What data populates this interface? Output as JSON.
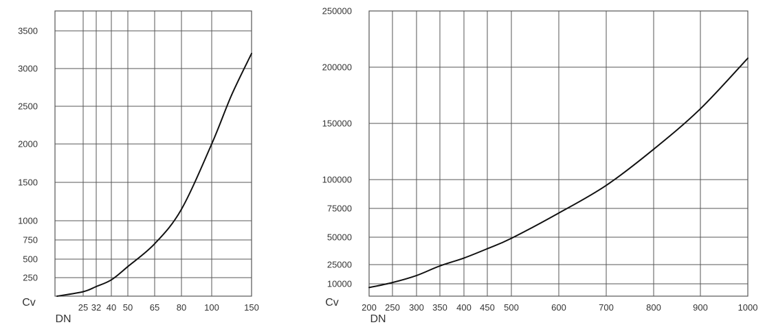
{
  "chart_data": [
    {
      "type": "line",
      "title": "",
      "xlabel": "DN",
      "ylabel": "Cv",
      "grid": true,
      "x_ticks": [
        "25",
        "32",
        "40",
        "50",
        "65",
        "80",
        "100",
        "150"
      ],
      "y_ticks": [
        "250",
        "500",
        "750",
        "1000",
        "1500",
        "2000",
        "2500",
        "3000",
        "3500"
      ],
      "ylim": [
        0,
        3700
      ],
      "series": [
        {
          "x": [
            "15",
            "25",
            "32",
            "40",
            "50",
            "65",
            "80",
            "100",
            "125",
            "150"
          ],
          "values": [
            0,
            60,
            130,
            220,
            400,
            700,
            1150,
            2000,
            2650,
            3200
          ]
        }
      ]
    },
    {
      "type": "line",
      "title": "",
      "xlabel": "DN",
      "ylabel": "Cv",
      "grid": true,
      "x_ticks": [
        "200",
        "250",
        "300",
        "350",
        "400",
        "450",
        "500",
        "600",
        "700",
        "800",
        "900",
        "1000"
      ],
      "y_ticks": [
        "10000",
        "25000",
        "50000",
        "75000",
        "100000",
        "150000",
        "200000",
        "250000"
      ],
      "ylim": [
        0,
        250000
      ],
      "series": [
        {
          "x": [
            "200",
            "250",
            "300",
            "350",
            "400",
            "450",
            "500",
            "600",
            "700",
            "800",
            "900",
            "1000"
          ],
          "values": [
            7000,
            11000,
            16500,
            24000,
            31000,
            39500,
            49000,
            71000,
            95000,
            127000,
            163000,
            208000
          ]
        }
      ]
    }
  ]
}
